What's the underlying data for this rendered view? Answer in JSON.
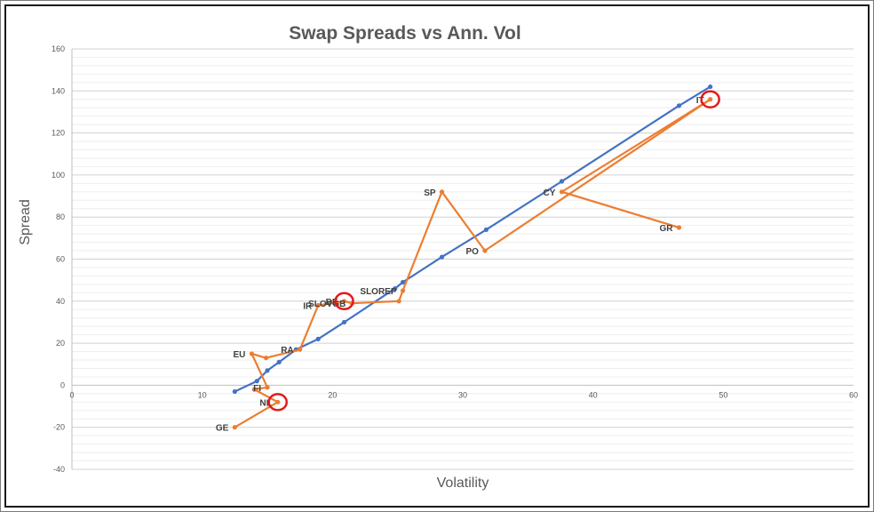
{
  "chart_data": {
    "type": "line",
    "title": "Swap Spreads vs Ann. Vol",
    "xlabel": "Volatility",
    "ylabel": "Spread",
    "xlim": [
      0,
      60
    ],
    "ylim": [
      -40,
      160
    ],
    "xticks": [
      0,
      10,
      20,
      30,
      40,
      50,
      60
    ],
    "yticks": [
      -40,
      -20,
      0,
      20,
      40,
      60,
      80,
      100,
      120,
      140,
      160
    ],
    "grid": "horizontal major and minor",
    "legend": "none",
    "series": [
      {
        "color": "#4472c4",
        "kind": "fitted",
        "x": [
          12.5,
          14.2,
          15.0,
          15.9,
          17.2,
          18.9,
          20.9,
          24.8,
          25.4,
          28.4,
          31.8,
          37.6,
          46.6,
          49.0
        ],
        "y": [
          -3,
          2,
          7,
          11,
          17,
          22,
          30,
          46,
          49,
          61,
          74,
          97,
          133,
          142
        ]
      },
      {
        "color": "#ed7d31",
        "kind": "actual",
        "x": [
          12.5,
          15.8,
          14.0,
          15.0,
          13.8,
          14.9,
          17.5,
          18.9,
          20.9,
          21.5,
          25.1,
          25.4,
          28.4,
          31.7,
          49.0,
          37.6,
          46.6
        ],
        "y": [
          -20,
          -8,
          -2,
          -1,
          15,
          13,
          17,
          38,
          40,
          39,
          40,
          45,
          92,
          64,
          136,
          92,
          75
        ],
        "labels": [
          "GE",
          "NL",
          "",
          "FI",
          "EU",
          "",
          "RA",
          "IR",
          "BE",
          "SLOVGB",
          "",
          "SLOREP",
          "SP",
          "PO",
          "IT",
          "CY",
          "GR"
        ]
      }
    ],
    "highlight_circles": [
      {
        "label": "NL",
        "x": 15.8,
        "y": -8
      },
      {
        "label": "BE",
        "x": 20.9,
        "y": 40
      },
      {
        "label": "IT",
        "x": 49.0,
        "y": 136
      }
    ],
    "colors": {
      "grid": "#d9d9d9",
      "axis": "#bfbfbf",
      "circle": "#e31a1c"
    }
  }
}
